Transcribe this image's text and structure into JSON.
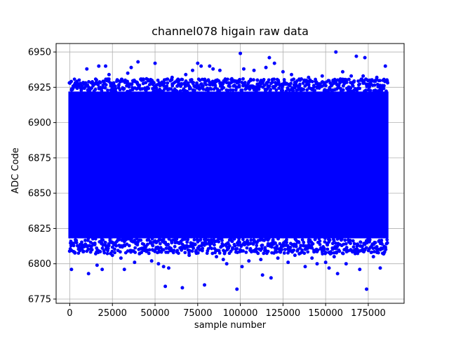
{
  "chart_data": {
    "type": "scatter",
    "title": "channel078 higain raw data",
    "xlabel": "sample number",
    "ylabel": "ADC Code",
    "xlim": [
      -8000,
      196000
    ],
    "ylim": [
      6772,
      6956
    ],
    "xticks": [
      0,
      25000,
      50000,
      75000,
      100000,
      125000,
      150000,
      175000
    ],
    "yticks": [
      6775,
      6800,
      6825,
      6850,
      6875,
      6900,
      6925,
      6950
    ],
    "grid": true,
    "color": "#0000ff",
    "series": [
      {
        "x_range": [
          0,
          186000
        ],
        "dense_band": [
          6818,
          6922
        ],
        "points": [
          [
            1000,
            6796
          ],
          [
            3000,
            6808
          ],
          [
            6000,
            6927
          ],
          [
            8000,
            6812
          ],
          [
            10000,
            6938
          ],
          [
            11000,
            6793
          ],
          [
            13000,
            6810
          ],
          [
            16000,
            6799
          ],
          [
            17000,
            6940
          ],
          [
            19000,
            6796
          ],
          [
            21000,
            6940
          ],
          [
            23000,
            6934
          ],
          [
            25000,
            6806
          ],
          [
            28000,
            6930
          ],
          [
            30000,
            6804
          ],
          [
            32000,
            6796
          ],
          [
            34000,
            6935
          ],
          [
            36000,
            6939
          ],
          [
            38000,
            6801
          ],
          [
            40000,
            6943
          ],
          [
            42000,
            6808
          ],
          [
            45000,
            6931
          ],
          [
            48000,
            6802
          ],
          [
            50000,
            6942
          ],
          [
            52000,
            6800
          ],
          [
            55000,
            6798
          ],
          [
            56000,
            6784
          ],
          [
            58000,
            6797
          ],
          [
            60000,
            6932
          ],
          [
            63000,
            6930
          ],
          [
            66000,
            6783
          ],
          [
            68000,
            6934
          ],
          [
            70000,
            6806
          ],
          [
            72000,
            6937
          ],
          [
            75000,
            6942
          ],
          [
            77000,
            6940
          ],
          [
            79000,
            6785
          ],
          [
            82000,
            6940
          ],
          [
            84000,
            6938
          ],
          [
            86000,
            6805
          ],
          [
            88000,
            6937
          ],
          [
            90000,
            6803
          ],
          [
            92000,
            6800
          ],
          [
            95000,
            6931
          ],
          [
            98000,
            6782
          ],
          [
            100000,
            6949
          ],
          [
            101000,
            6798
          ],
          [
            102000,
            6938
          ],
          [
            105000,
            6802
          ],
          [
            108000,
            6937
          ],
          [
            110000,
            6930
          ],
          [
            112000,
            6803
          ],
          [
            113000,
            6792
          ],
          [
            115000,
            6939
          ],
          [
            117000,
            6946
          ],
          [
            118000,
            6790
          ],
          [
            120000,
            6942
          ],
          [
            122000,
            6804
          ],
          [
            125000,
            6936
          ],
          [
            128000,
            6801
          ],
          [
            130000,
            6934
          ],
          [
            132000,
            6806
          ],
          [
            135000,
            6930
          ],
          [
            138000,
            6798
          ],
          [
            140000,
            6932
          ],
          [
            142000,
            6804
          ],
          [
            145000,
            6800
          ],
          [
            148000,
            6933
          ],
          [
            150000,
            6801
          ],
          [
            152000,
            6797
          ],
          [
            155000,
            6805
          ],
          [
            156000,
            6950
          ],
          [
            157000,
            6793
          ],
          [
            160000,
            6936
          ],
          [
            162000,
            6800
          ],
          [
            165000,
            6933
          ],
          [
            168000,
            6947
          ],
          [
            170000,
            6796
          ],
          [
            172000,
            6933
          ],
          [
            173000,
            6946
          ],
          [
            174000,
            6782
          ],
          [
            176000,
            6930
          ],
          [
            178000,
            6805
          ],
          [
            180000,
            6932
          ],
          [
            182000,
            6797
          ],
          [
            184000,
            6807
          ],
          [
            185000,
            6940
          ]
        ]
      }
    ]
  }
}
